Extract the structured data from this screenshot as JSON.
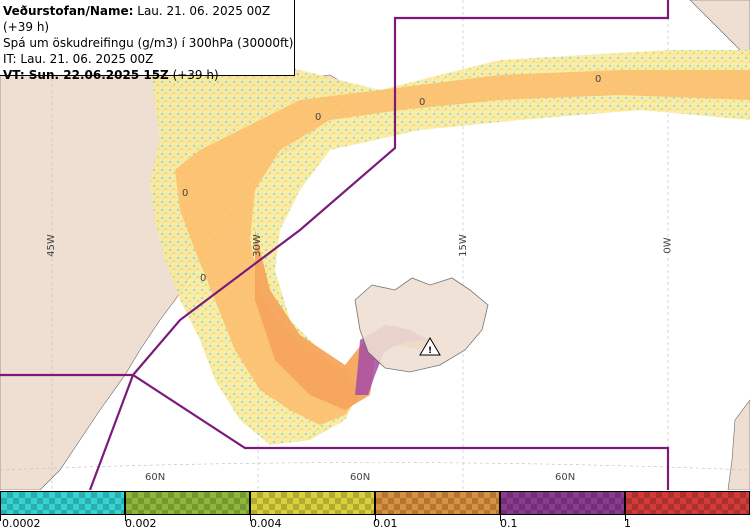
{
  "header": {
    "line1_bold": "Veðurstofan/Name:",
    "line1_rest": " Lau. 21. 06. 2025 00Z (+39 h)",
    "line2": "Spá um öskudreifingu (g/m3) í 300hPa (30000ft)",
    "line3": "IT: Lau. 21. 06. 2025 00Z",
    "line4_bold": "VT: Sun. 22.06.2025 15Z",
    "line4_rest": " (+39 h)"
  },
  "grid_labels": {
    "lon_45w": "45W",
    "lon_30w": "30W",
    "lon_15w": "15W",
    "lon_0w": "0W",
    "lat_60n_a": "60N",
    "lat_60n_b": "60N",
    "lat_60n_c": "60N"
  },
  "contour_labels": [
    "0",
    "0",
    "0",
    "0",
    "0"
  ],
  "legend": {
    "ticks": [
      "0.0002",
      "0.002",
      "0.004",
      "0.01",
      "0.1",
      "1"
    ],
    "colors": {
      "bin1": "#35d3d3",
      "bin2": "#8fb83a",
      "bin3": "#d9d13c",
      "bin4": "#d9903f",
      "bin5": "#8a3a8f",
      "bin6": "#d33a3a"
    }
  },
  "colors": {
    "sea": "#ffffff",
    "land": "#efdfd2",
    "boundary": "#7b1a7b",
    "plume_light": "#fbe99b",
    "plume_mid": "#fbbd6b",
    "plume_core": "#f5a55c",
    "plume_high": "#a64ca6"
  },
  "icons": {
    "volcano": "volcano-warning-icon"
  }
}
